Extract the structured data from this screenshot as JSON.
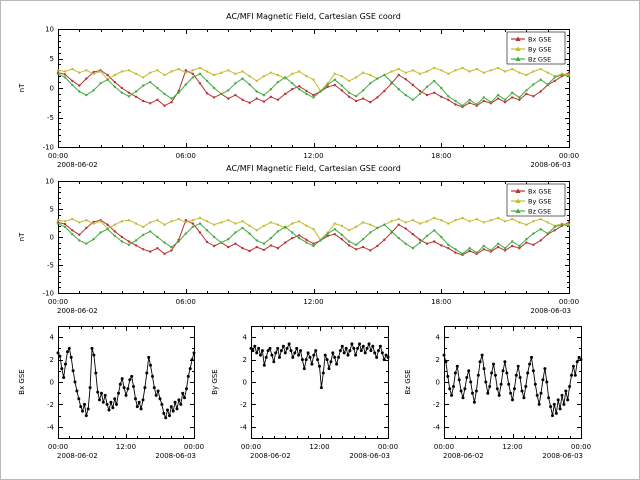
{
  "figure": {
    "background": "#ffffff",
    "text_color": "#000000"
  },
  "chart_data": {
    "type": "line",
    "x_unit": "time of day (hours)",
    "x_hours": [
      0,
      0.33,
      0.67,
      1,
      1.33,
      1.67,
      2,
      2.33,
      2.67,
      3,
      3.33,
      3.67,
      4,
      4.33,
      4.67,
      5,
      5.33,
      5.67,
      6,
      6.33,
      6.67,
      7,
      7.33,
      7.67,
      8,
      8.33,
      8.67,
      9,
      9.33,
      9.67,
      10,
      10.33,
      10.67,
      11,
      11.33,
      11.67,
      12,
      12.33,
      12.67,
      13,
      13.33,
      13.67,
      14,
      14.33,
      14.67,
      15,
      15.33,
      15.67,
      16,
      16.33,
      16.67,
      17,
      17.33,
      17.67,
      18,
      18.33,
      18.67,
      19,
      19.33,
      19.67,
      20,
      20.33,
      20.67,
      21,
      21.33,
      21.67,
      22,
      22.33,
      22.67,
      23,
      23.33,
      23.67,
      24
    ],
    "series": [
      {
        "name": "Bx GSE",
        "color": "#b73333",
        "values": [
          2.6,
          2.3,
          1.2,
          0.4,
          1.6,
          2.7,
          3.0,
          2.2,
          1.0,
          0.0,
          -0.8,
          -1.5,
          -2.2,
          -2.6,
          -2.0,
          -3.0,
          -2.4,
          -0.5,
          3.0,
          2.4,
          0.8,
          -0.9,
          -1.6,
          -1.0,
          -1.8,
          -1.2,
          -2.0,
          -2.5,
          -1.8,
          -2.3,
          -1.5,
          -2.0,
          -1.0,
          -0.2,
          0.3,
          -0.5,
          -1.2,
          -0.6,
          0.2,
          0.5,
          -0.4,
          -1.5,
          -2.2,
          -1.8,
          -2.4,
          -1.6,
          -0.5,
          0.8,
          2.2,
          1.5,
          0.5,
          -0.5,
          -1.2,
          -0.8,
          -1.5,
          -2.0,
          -2.8,
          -3.2,
          -2.5,
          -3.0,
          -2.2,
          -2.6,
          -1.8,
          -2.4,
          -1.6,
          -2.0,
          -1.0,
          -1.4,
          -0.6,
          0.5,
          1.2,
          2.0,
          2.6
        ]
      },
      {
        "name": "By GSE",
        "color": "#c3bb33",
        "values": [
          3.0,
          2.8,
          3.2,
          2.6,
          3.0,
          2.4,
          2.8,
          1.5,
          2.2,
          2.8,
          3.0,
          2.4,
          1.8,
          2.6,
          3.0,
          2.2,
          2.8,
          3.2,
          2.6,
          3.0,
          3.4,
          2.8,
          2.2,
          2.6,
          3.0,
          2.4,
          2.8,
          2.0,
          1.2,
          2.0,
          2.6,
          2.2,
          1.6,
          2.4,
          2.8,
          2.0,
          1.4,
          -0.5,
          0.8,
          2.4,
          2.0,
          1.2,
          1.8,
          2.6,
          2.2,
          1.6,
          2.2,
          2.8,
          3.2,
          2.6,
          3.0,
          2.4,
          2.8,
          3.4,
          3.0,
          2.4,
          3.0,
          3.4,
          2.8,
          3.2,
          2.6,
          3.0,
          3.4,
          2.8,
          3.2,
          2.6,
          2.2,
          2.8,
          3.2,
          2.6,
          2.0,
          2.4,
          2.2
        ]
      },
      {
        "name": "Bz GSE",
        "color": "#44aa44",
        "values": [
          2.4,
          1.8,
          0.5,
          -0.6,
          -1.2,
          -0.4,
          0.8,
          1.4,
          0.2,
          -0.8,
          -1.4,
          -0.6,
          0.4,
          1.0,
          0.0,
          -1.0,
          -1.8,
          -0.8,
          0.6,
          1.8,
          2.4,
          1.2,
          0.0,
          -1.0,
          -0.4,
          0.8,
          1.6,
          0.6,
          -0.6,
          -1.2,
          -0.2,
          1.0,
          1.8,
          0.8,
          -0.2,
          -1.0,
          -1.6,
          -0.6,
          0.6,
          1.4,
          0.4,
          -0.8,
          -1.4,
          -0.4,
          0.8,
          1.6,
          2.2,
          1.0,
          -0.2,
          -1.2,
          -2.0,
          -1.0,
          0.2,
          1.2,
          0.0,
          -1.4,
          -2.2,
          -3.0,
          -2.0,
          -2.8,
          -1.6,
          -2.4,
          -1.2,
          -2.0,
          -0.8,
          -1.6,
          -0.4,
          0.6,
          1.4,
          0.6,
          1.8,
          2.2,
          2.0
        ]
      }
    ],
    "panels": [
      {
        "id": "overview-1",
        "type": "line",
        "title": "AC/MFI  Magnetic Field, Cartesian GSE coord",
        "ylabel": "nT",
        "ylim": [
          -10,
          10
        ],
        "yticks": [
          10,
          5,
          0,
          -5,
          -10
        ],
        "xticks": [
          {
            "hour": 0,
            "label": "00:00",
            "date": "2008-06-02"
          },
          {
            "hour": 6,
            "label": "06:00"
          },
          {
            "hour": 12,
            "label": "12:00"
          },
          {
            "hour": 18,
            "label": "18:00"
          },
          {
            "hour": 24,
            "label": "00:00",
            "date": "2008-06-03"
          }
        ],
        "series": [
          "Bx GSE",
          "By GSE",
          "Bz GSE"
        ],
        "legend": true
      },
      {
        "id": "overview-2",
        "type": "line",
        "title": "AC/MFI  Magnetic Field, Cartesian GSE coord",
        "ylabel": "nT",
        "ylim": [
          -10,
          10
        ],
        "yticks": [
          10,
          5,
          0,
          -5,
          -10
        ],
        "xticks": [
          {
            "hour": 0,
            "label": "00:00",
            "date": "2008-06-02"
          },
          {
            "hour": 6,
            "label": "06:00"
          },
          {
            "hour": 12,
            "label": "12:00"
          },
          {
            "hour": 18,
            "label": "18:00"
          },
          {
            "hour": 24,
            "label": "00:00",
            "date": "2008-06-03"
          }
        ],
        "series": [
          "Bx GSE",
          "By GSE",
          "Bz GSE"
        ],
        "legend": true
      },
      {
        "id": "detail-bx",
        "type": "line",
        "ylabel": "Bx GSE",
        "ylim": [
          -5,
          5
        ],
        "yticks": [
          4,
          2,
          0,
          -2,
          -4
        ],
        "xticks": [
          {
            "hour": 0,
            "label": "00:00",
            "date": "2008-06-02"
          },
          {
            "hour": 12,
            "label": "12:00"
          },
          {
            "hour": 24,
            "label": "00:00",
            "date": "2008-06-03"
          }
        ],
        "series": [
          "Bx GSE"
        ],
        "series_color": "#000000",
        "legend": false
      },
      {
        "id": "detail-by",
        "type": "line",
        "ylabel": "By GSE",
        "ylim": [
          -5,
          5
        ],
        "yticks": [
          4,
          2,
          0,
          -2,
          -4
        ],
        "xticks": [
          {
            "hour": 0,
            "label": "00:00",
            "date": "2008-06-02"
          },
          {
            "hour": 12,
            "label": "12:00"
          },
          {
            "hour": 24,
            "label": "00:00",
            "date": "2008-06-03"
          }
        ],
        "series": [
          "By GSE"
        ],
        "series_color": "#000000",
        "legend": false
      },
      {
        "id": "detail-bz",
        "type": "line",
        "ylabel": "Bz GSE",
        "ylim": [
          -5,
          5
        ],
        "yticks": [
          4,
          2,
          0,
          -2,
          -4
        ],
        "xticks": [
          {
            "hour": 0,
            "label": "00:00",
            "date": "2008-06-02"
          },
          {
            "hour": 12,
            "label": "12:00"
          },
          {
            "hour": 24,
            "label": "00:00",
            "date": "2008-06-03"
          }
        ],
        "series": [
          "Bz GSE"
        ],
        "series_color": "#000000",
        "legend": false
      }
    ]
  }
}
